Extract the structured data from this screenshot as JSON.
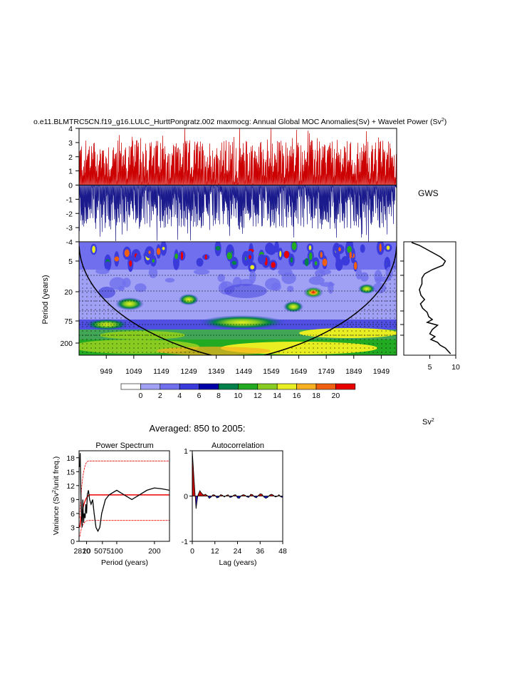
{
  "main_title": "o.e11.BLMTRC5CN.f19_g16.LULC_HurttPongratz.002 maxmocg: Annual Global MOC Anomalies(Sv) + Wavelet Power (Sv",
  "main_title_sup": "2",
  "main_title_end": ")",
  "gws_label": "GWS",
  "sv2_label": "Sv",
  "sv2_sup": "2",
  "averaged_label": "Averaged: 850 to 2005:",
  "colors": {
    "positive": "#cc0000",
    "negative": "#1a1a8c",
    "red_line": "#ee0000",
    "blue_fill": "#0000cc"
  },
  "chart_data": [
    {
      "id": "timeseries",
      "type": "bar",
      "ylim": [
        -4,
        4
      ],
      "yticks": [
        "4",
        "3",
        "2",
        "1",
        "0",
        "-1",
        "-2",
        "-3",
        "-4"
      ],
      "xlim": [
        850,
        2005
      ]
    },
    {
      "id": "wavelet",
      "type": "heatmap",
      "ylabel": "Period (years)",
      "yticks": [
        "5",
        "20",
        "75",
        "200"
      ],
      "xticks": [
        "949",
        "1049",
        "1149",
        "1249",
        "1349",
        "1449",
        "1549",
        "1649",
        "1749",
        "1849",
        "1949"
      ],
      "xlim": [
        850,
        2005
      ]
    },
    {
      "id": "colorbar",
      "type": "bar",
      "labels": [
        "0",
        "2",
        "4",
        "6",
        "8",
        "10",
        "12",
        "14",
        "16",
        "18",
        "20"
      ],
      "colors": [
        "#ffffff",
        "#a0a0f5",
        "#7070ee",
        "#3b3bdc",
        "#0000a8",
        "#00804a",
        "#22aa22",
        "#88cc22",
        "#e8ee22",
        "#f8b020",
        "#f06010",
        "#e80000"
      ]
    },
    {
      "id": "gws",
      "type": "line",
      "xticks": [
        "5",
        "10"
      ],
      "xlim": [
        0,
        10
      ]
    },
    {
      "id": "power_spectrum",
      "type": "line",
      "title": "Power Spectrum",
      "ylabel_pre": "Variance (Sv",
      "ylabel_sup": "2",
      "ylabel_post": "/unit freq.)",
      "xlabel": "Period (years)",
      "yticks": [
        "0",
        "3",
        "6",
        "9",
        "12",
        "15",
        "18"
      ],
      "xticks_crowded": "2810",
      "xticks": [
        "20",
        "5075",
        "100",
        "200"
      ],
      "ylim": [
        0,
        19.5
      ],
      "xlim": [
        0,
        240
      ],
      "series": [
        {
          "x": [
            2,
            3,
            4,
            5,
            6,
            8,
            10,
            12,
            14,
            16,
            18,
            20,
            22,
            25,
            28,
            32,
            36,
            40,
            45,
            50,
            55,
            60,
            70,
            80,
            90,
            100,
            120,
            140,
            160,
            180,
            200,
            220,
            240
          ],
          "y": [
            16,
            19,
            14,
            10,
            7,
            3,
            9,
            4,
            6,
            5,
            8,
            6,
            10,
            11,
            9,
            8,
            9,
            6,
            3,
            2.2,
            3,
            6,
            9,
            10,
            10.5,
            11,
            10,
            9,
            10,
            11,
            11.5,
            11.3,
            11
          ]
        }
      ],
      "mean_level": 10,
      "ci_upper": 17.3,
      "ci_lower": 4.5
    },
    {
      "id": "autocorrelation",
      "type": "area",
      "title": "Autocorrelation",
      "xlabel": "Lag (years)",
      "yticks": [
        "1",
        "0",
        "-1"
      ],
      "xticks": [
        "0",
        "12",
        "24",
        "36",
        "48"
      ],
      "ylim": [
        -1,
        1
      ],
      "xlim": [
        0,
        48
      ],
      "x": [
        0,
        1,
        2,
        3,
        4,
        5,
        6,
        7,
        8,
        9,
        10,
        11,
        12,
        13,
        14,
        15,
        16,
        17,
        18,
        19,
        20,
        21,
        22,
        23,
        24,
        25,
        26,
        27,
        28,
        29,
        30,
        31,
        32,
        33,
        34,
        35,
        36,
        37,
        38,
        39,
        40,
        41,
        42,
        43,
        44,
        45,
        46,
        47,
        48
      ],
      "values": [
        1,
        0.35,
        -0.28,
        0.02,
        0.12,
        0.06,
        0.02,
        0.04,
        0.01,
        -0.05,
        -0.02,
        0.03,
        0.02,
        -0.04,
        -0.03,
        0.03,
        0.02,
        -0.02,
        0.01,
        0.03,
        -0.03,
        -0.02,
        0.02,
        0.03,
        -0.04,
        -0.05,
        0.01,
        0.03,
        0.02,
        -0.02,
        -0.03,
        0.04,
        0.03,
        -0.02,
        -0.04,
        0.01,
        0.05,
        0.04,
        -0.02,
        -0.05,
        -0.03,
        0.02,
        0.04,
        0.02,
        -0.02,
        -0.01,
        0.03,
        -0.02,
        -0.03
      ]
    }
  ]
}
